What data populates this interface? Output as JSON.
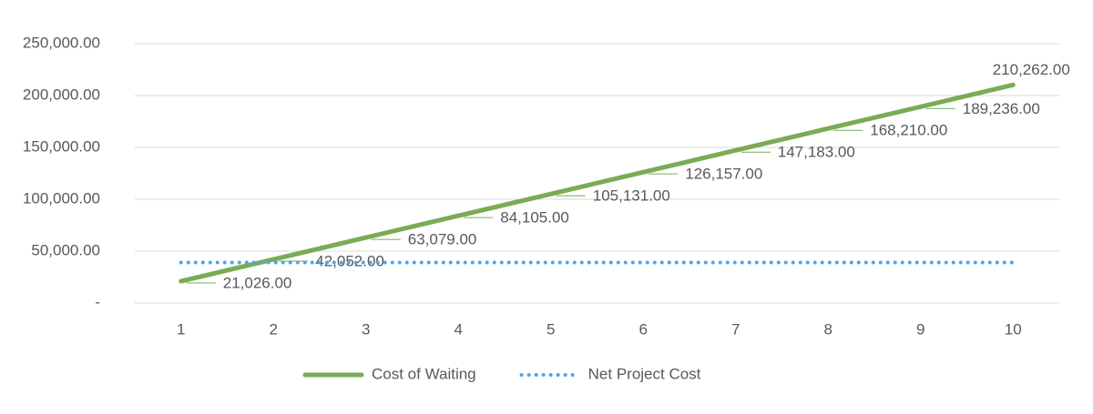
{
  "chart_data": {
    "type": "line",
    "categories": [
      "1",
      "2",
      "3",
      "4",
      "5",
      "6",
      "7",
      "8",
      "9",
      "10"
    ],
    "series": [
      {
        "name": "Cost of Waiting",
        "color": "#7aab55",
        "values": [
          21026,
          42052,
          63079,
          84105,
          105131,
          126157,
          147183,
          168210,
          189236,
          210262
        ],
        "value_labels": [
          "21,026.00",
          "42,052.00",
          "63,079.00",
          "84,105.00",
          "105,131.00",
          "126,157.00",
          "147,183.00",
          "168,210.00",
          "189,236.00",
          "210,262.00"
        ]
      },
      {
        "name": "Net Project Cost",
        "color": "#4ea5ec",
        "values": [
          39000,
          39000,
          39000,
          39000,
          39000,
          39000,
          39000,
          39000,
          39000,
          39000
        ]
      }
    ],
    "ylim": [
      0,
      250000
    ],
    "yticks": [
      {
        "value": 0,
        "label": "-"
      },
      {
        "value": 50000,
        "label": "50,000.00"
      },
      {
        "value": 100000,
        "label": "100,000.00"
      },
      {
        "value": 150000,
        "label": "150,000.00"
      },
      {
        "value": 200000,
        "label": "200,000.00"
      },
      {
        "value": 250000,
        "label": "250,000.00"
      }
    ],
    "grid": true,
    "legend": "bottom"
  }
}
